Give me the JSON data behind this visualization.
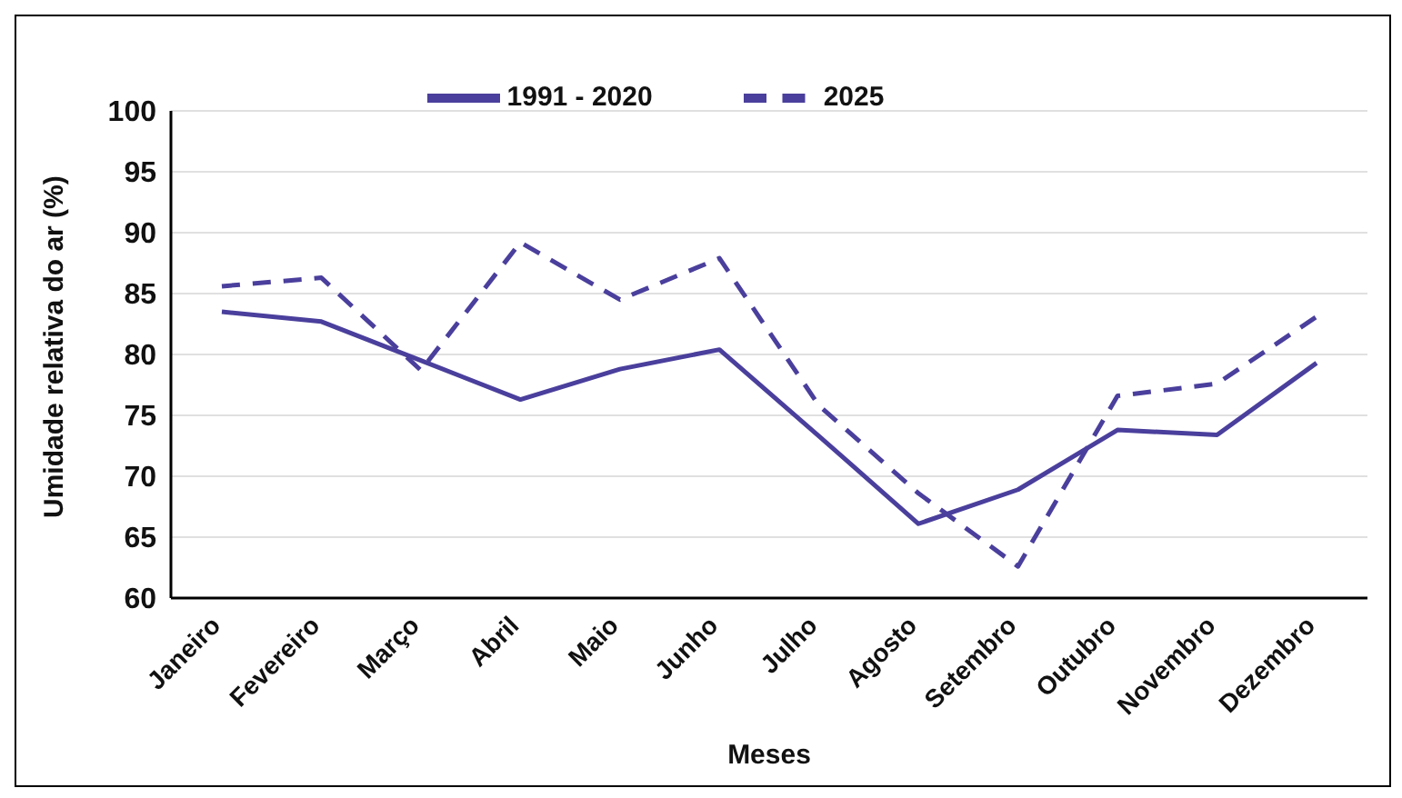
{
  "chart_data": {
    "type": "line",
    "xlabel": "Meses",
    "ylabel": "Umidade relativa do ar (%)",
    "categories": [
      "Janeiro",
      "Fevereiro",
      "Março",
      "Abril",
      "Maio",
      "Junho",
      "Julho",
      "Agosto",
      "Setembro",
      "Outubro",
      "Novembro",
      "Dezembro"
    ],
    "series": [
      {
        "name": "1991 - 2020",
        "color": "#4a3f9c",
        "line_style": "solid",
        "values": [
          83.5,
          82.7,
          79.5,
          76.3,
          78.8,
          80.4,
          73.3,
          66.1,
          68.9,
          73.8,
          73.4,
          79.3
        ]
      },
      {
        "name": "2025",
        "color": "#4a3f9c",
        "line_style": "dashed",
        "values": [
          85.6,
          86.3,
          78.7,
          89.2,
          84.5,
          87.9,
          75.8,
          68.6,
          62.6,
          76.6,
          77.6,
          83.1
        ]
      }
    ],
    "ylim": [
      60,
      100
    ],
    "yticks": [
      60,
      65,
      70,
      75,
      80,
      85,
      90,
      95,
      100
    ],
    "grid": "y",
    "legend": "top",
    "marker": "none"
  }
}
